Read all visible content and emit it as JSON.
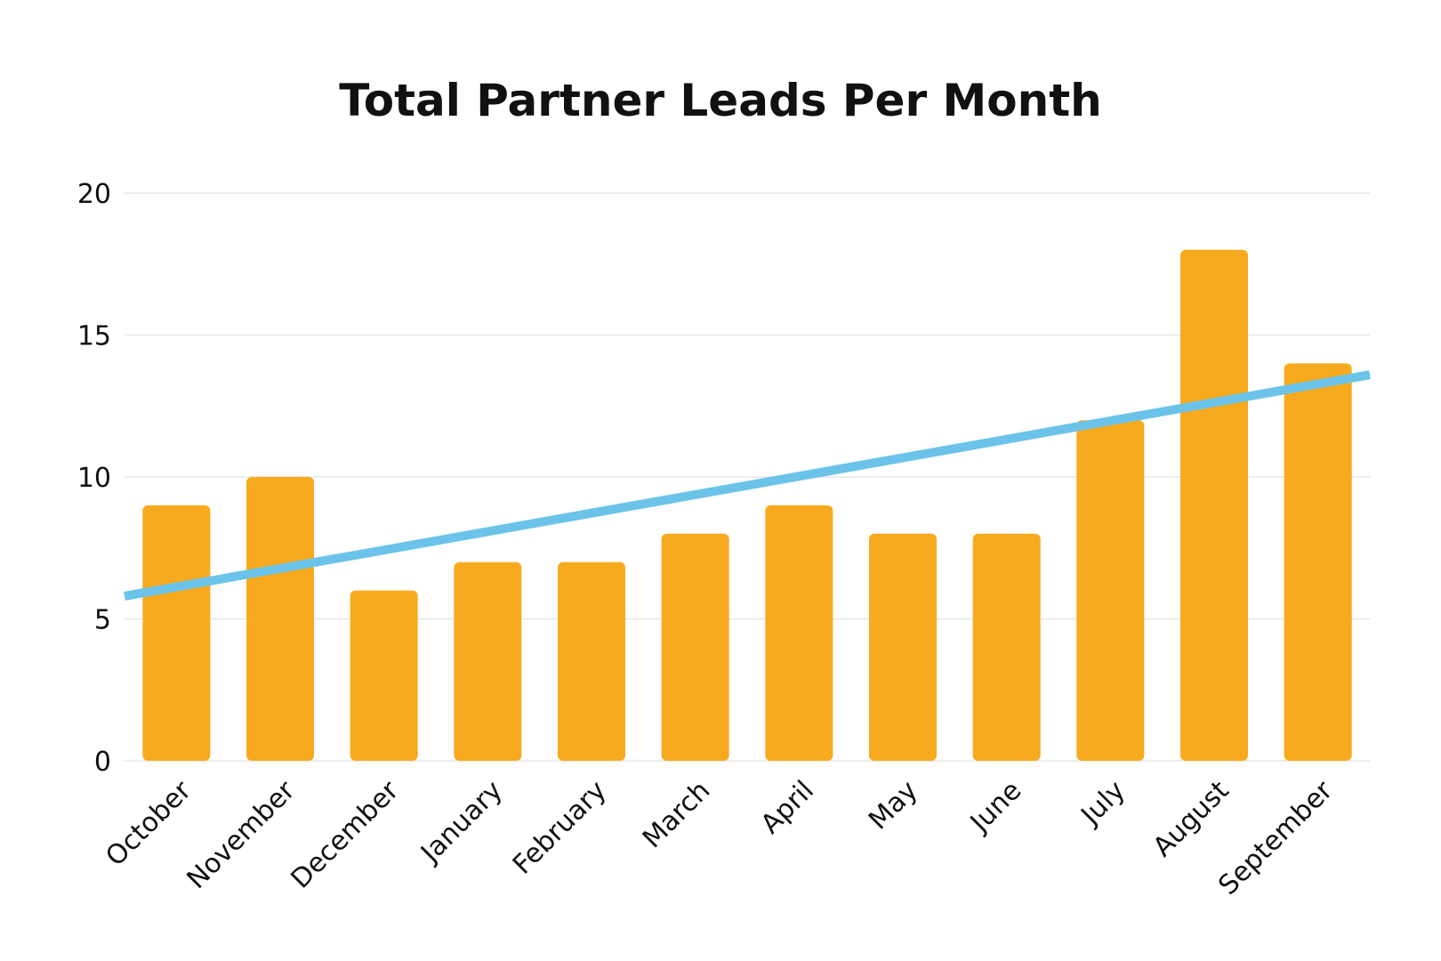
{
  "chart_data": {
    "type": "bar",
    "title": "Total Partner Leads Per Month",
    "xlabel": "",
    "ylabel": "",
    "categories": [
      "October",
      "November",
      "December",
      "January",
      "February",
      "March",
      "April",
      "May",
      "June",
      "July",
      "August",
      "September"
    ],
    "values": [
      9,
      10,
      6,
      7,
      7,
      8,
      9,
      8,
      8,
      12,
      18,
      14
    ],
    "ylim": [
      0,
      20
    ],
    "yticks": [
      0,
      5,
      10,
      15,
      20
    ],
    "grid": true,
    "legend": "none",
    "trendline": {
      "type": "linear",
      "start_value": 5.8,
      "end_value": 13.6
    },
    "colors": {
      "bar": "#F8AA1E",
      "trendline": "#6BC3EA",
      "grid": "#E6E6E6",
      "text": "#111111"
    }
  }
}
